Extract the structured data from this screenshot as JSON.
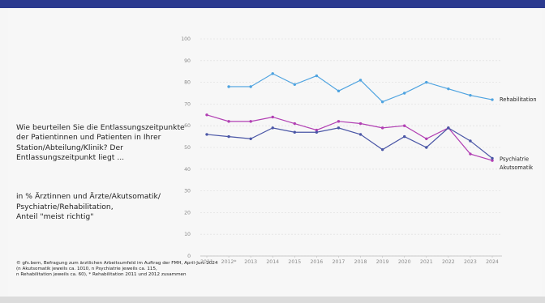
{
  "question": {
    "text": "Wie beurteilen Sie die Entlassungszeitpunkte der Patientinnen und Patienten in Ihrer Station/Abteilung/Klinik? Der Entlassungszeitpunkt liegt ...",
    "subtext": "in % Ärztinnen und Ärzte/Akutsomatik/\nPsychiatrie/Rehabilitation,\nAnteil \"meist richtig\""
  },
  "source": "© gfs.bern, Befragung zum ärztlichen Arbeitsumfeld im Auftrag der FMH, April-Juni 2024\n(n Akutsomatik jeweils ca. 1010, n Psychiatrie jeweils ca. 115,\nn Rehabilitation jeweils ca. 60), * Rehabilitation 2011 und 2012 zusammen",
  "chart_data": {
    "type": "line",
    "x": [
      "2011",
      "2012*",
      "2013",
      "2014",
      "2015",
      "2016",
      "2017",
      "2018",
      "2019",
      "2020",
      "2021",
      "2022",
      "2023",
      "2024"
    ],
    "ylim": [
      0,
      100
    ],
    "yticks": [
      "0",
      "10",
      "20",
      "30",
      "40",
      "50",
      "60",
      "70",
      "80",
      "90",
      "100"
    ],
    "grid": true,
    "series": [
      {
        "name": "Rehabilitation",
        "color": "#4ea3e0",
        "values": [
          null,
          78,
          78,
          84,
          79,
          83,
          76,
          81,
          71,
          75,
          80,
          77,
          74,
          72
        ]
      },
      {
        "name": "Psychiatrie",
        "color": "#b13fb3",
        "values": [
          65,
          62,
          62,
          64,
          61,
          58,
          62,
          61,
          59,
          60,
          54,
          59,
          47,
          44
        ]
      },
      {
        "name": "Akutsomatik",
        "color": "#4a56a6",
        "values": [
          56,
          55,
          54,
          59,
          57,
          57,
          59,
          56,
          49,
          55,
          50,
          59,
          53,
          45
        ]
      }
    ]
  }
}
